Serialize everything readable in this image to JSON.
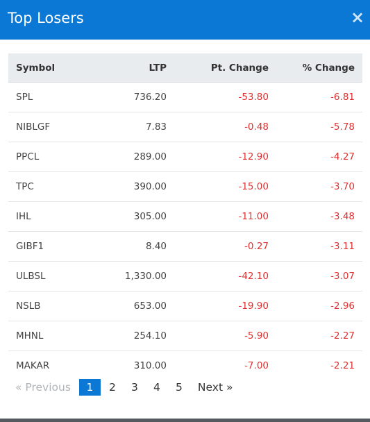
{
  "header": {
    "title": "Top Losers",
    "close_glyph": "×",
    "bg_color": "#0b78d6"
  },
  "table": {
    "columns": [
      "Symbol",
      "LTP",
      "Pt. Change",
      "% Change"
    ],
    "rows": [
      [
        "SPL",
        "736.20",
        "-53.80",
        "-6.81"
      ],
      [
        "NIBLGF",
        "7.83",
        "-0.48",
        "-5.78"
      ],
      [
        "PPCL",
        "289.00",
        "-12.90",
        "-4.27"
      ],
      [
        "TPC",
        "390.00",
        "-15.00",
        "-3.70"
      ],
      [
        "IHL",
        "305.00",
        "-11.00",
        "-3.48"
      ],
      [
        "GIBF1",
        "8.40",
        "-0.27",
        "-3.11"
      ],
      [
        "ULBSL",
        "1,330.00",
        "-42.10",
        "-3.07"
      ],
      [
        "NSLB",
        "653.00",
        "-19.90",
        "-2.96"
      ],
      [
        "MHNL",
        "254.10",
        "-5.90",
        "-2.27"
      ],
      [
        "MAKAR",
        "310.00",
        "-7.00",
        "-2.21"
      ]
    ],
    "negative_color": "#e02f2f"
  },
  "pagination": {
    "previous": "«  Previous",
    "pages": [
      "1",
      "2",
      "3",
      "4",
      "5"
    ],
    "active": "1",
    "next": "Next  »"
  }
}
